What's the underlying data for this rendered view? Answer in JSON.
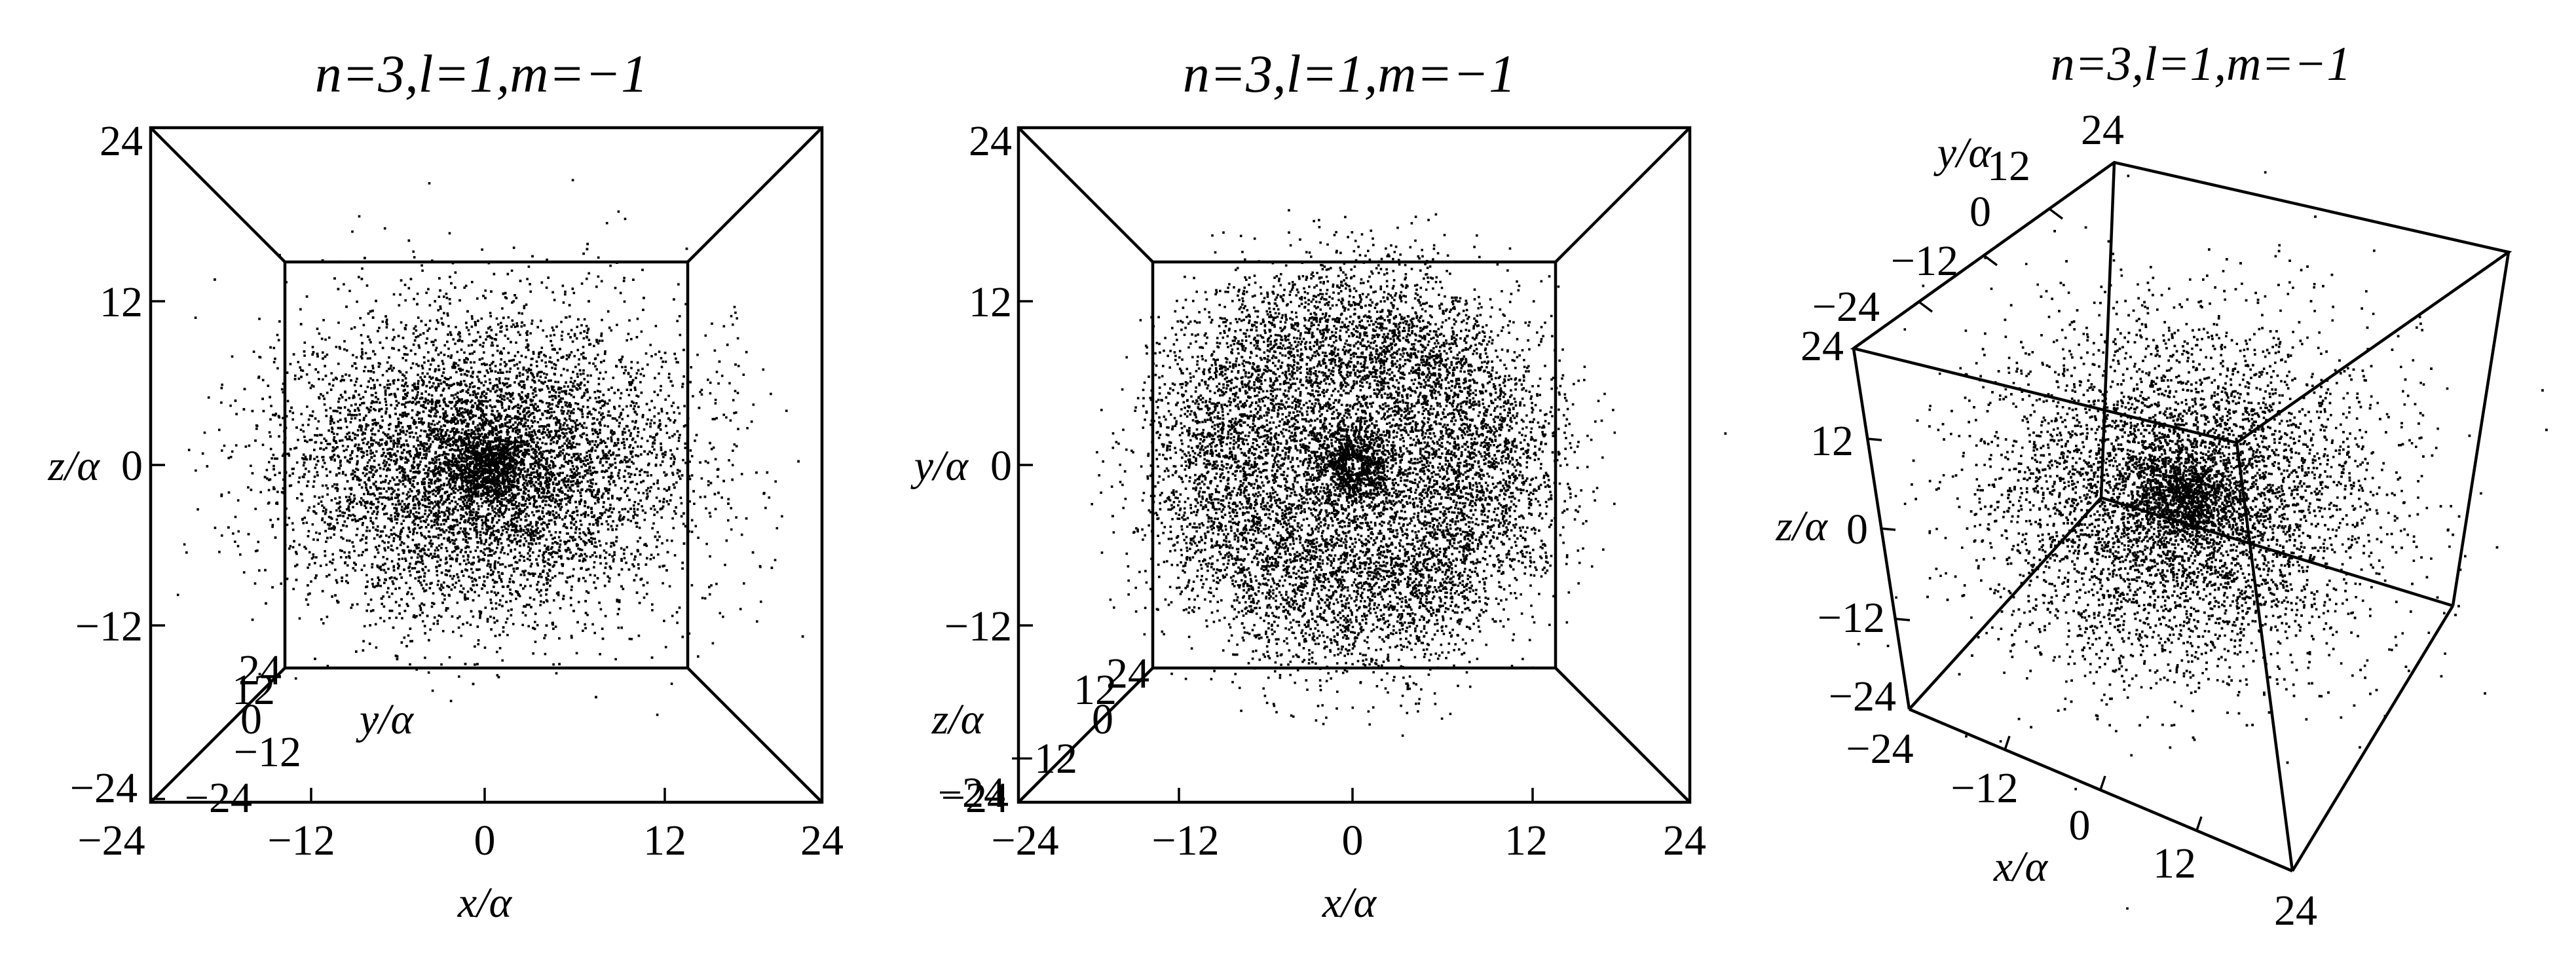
{
  "chart_data": [
    {
      "type": "scatter",
      "projection": "3d-box-view-along-y",
      "title": "n=3,l=1,m=−1",
      "axes": {
        "x": {
          "label": "x/α",
          "range": [
            -24,
            24
          ],
          "ticks": [
            "−24",
            "−12",
            "0",
            "12",
            "24"
          ]
        },
        "y": {
          "label": "y/α",
          "range": [
            -24,
            24
          ],
          "ticks": [
            "−24",
            "−12",
            "0",
            "12",
            "24"
          ]
        },
        "z": {
          "label": "z/α",
          "range": [
            -24,
            24
          ],
          "ticks": [
            "−24",
            "−12",
            "0",
            "12",
            "24"
          ]
        }
      },
      "grid": false,
      "legend": "none",
      "point_color": "#000000",
      "distribution": {
        "shape": "filled elliptical cloud, densest near origin",
        "extent_xy": 18,
        "extent_z": 14
      }
    },
    {
      "type": "scatter",
      "projection": "3d-box-view-along-z",
      "title": "n=3,l=1,m=−1",
      "axes": {
        "x": {
          "label": "x/α",
          "range": [
            -24,
            24
          ],
          "ticks": [
            "−24",
            "−12",
            "0",
            "12",
            "24"
          ]
        },
        "y": {
          "label": "y/α",
          "range": [
            -24,
            24
          ],
          "ticks": [
            "−24",
            "−12",
            "0",
            "12",
            "24"
          ]
        },
        "z": {
          "label": "z/α",
          "range": [
            -24,
            24
          ],
          "ticks": [
            "−24",
            "−12",
            "0",
            "12",
            "24"
          ]
        }
      },
      "grid": false,
      "legend": "none",
      "point_color": "#000000",
      "distribution": {
        "shape": "ring with dense inner core",
        "ring_radius": 10,
        "core_radius": 2.5,
        "outer_radius": 19
      }
    },
    {
      "type": "scatter",
      "projection": "3d-box-oblique",
      "title": "n=3,l=1,m=−1",
      "axes": {
        "x": {
          "label": "x/α",
          "range": [
            -24,
            24
          ],
          "ticks": [
            "−24",
            "−12",
            "0",
            "12",
            "24"
          ]
        },
        "y": {
          "label": "y/α",
          "range": [
            -24,
            24
          ],
          "ticks": [
            "−24",
            "−12",
            "0",
            "12",
            "24"
          ]
        },
        "z": {
          "label": "z/α",
          "range": [
            -24,
            24
          ],
          "ticks": [
            "−24",
            "−12",
            "0",
            "12",
            "24"
          ]
        }
      },
      "grid": false,
      "legend": "none",
      "point_color": "#000000",
      "distribution": {
        "shape": "roughly spherical cloud, densest near origin",
        "extent": 18
      }
    }
  ]
}
